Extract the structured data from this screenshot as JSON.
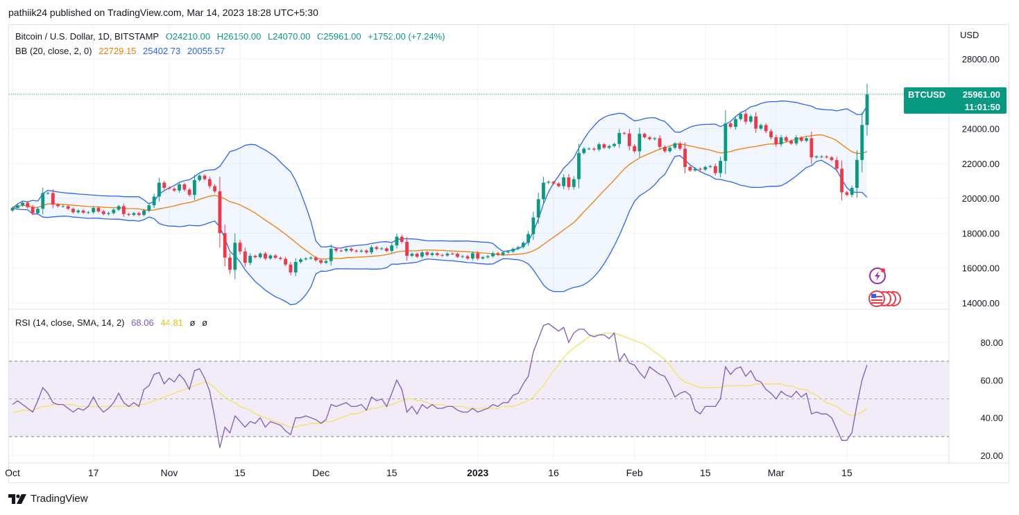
{
  "header": {
    "publisher": "pathiik24 published on TradingView.com, Mar 14, 2023 18:28 UTC+5:30"
  },
  "legend": {
    "symbol": "Bitcoin / U.S. Dollar, 1D, BITSTAMP",
    "open": "O24210.00",
    "high": "H26150.00",
    "low": "L24070.00",
    "close": "C25961.00",
    "change": "+1752.00 (+7.24%)",
    "bb_label": "BB (20, close, 2, 0)",
    "bb_basis": "22729.15",
    "bb_upper": "25402.73",
    "bb_lower": "20055.57",
    "rsi_label": "RSI (14, close, SMA, 14, 2)",
    "rsi_value": "68.06",
    "rsi_sma": "44.81",
    "rsi_extra1": "ø",
    "rsi_extra2": "ø"
  },
  "price_tag": {
    "symbol": "BTCUSD",
    "price": "25961.00",
    "countdown": "11:01:50"
  },
  "currency": "USD",
  "footer": {
    "brand": "TradingView"
  },
  "colors": {
    "up": "#089981",
    "down": "#f23645",
    "bb_band": "#2962ff",
    "bb_basis": "#f57c00",
    "rsi": "#7e57c2",
    "rsi_sma": "#f5e35b",
    "rsi_fill": "#ede7f6"
  },
  "chart_data": [
    {
      "type": "candlestick",
      "ylim": [
        13500,
        29500
      ],
      "y_ticks": [
        "28000.00",
        "26000.00",
        "24000.00",
        "22000.00",
        "20000.00",
        "18000.00",
        "16000.00",
        "14000.00"
      ],
      "y_tick_values": [
        28000,
        26000,
        24000,
        22000,
        20000,
        18000,
        16000,
        14000
      ],
      "x_ticks": [
        "Oct",
        "17",
        "Nov",
        "15",
        "Dec",
        "15",
        "2023",
        "16",
        "Feb",
        "15",
        "Mar",
        "15"
      ],
      "x_tick_index": [
        0,
        16,
        31,
        45,
        61,
        75,
        92,
        107,
        123,
        137,
        151,
        165
      ],
      "close": [
        19450,
        19600,
        19750,
        19500,
        19150,
        19400,
        20300,
        20300,
        19650,
        19550,
        19550,
        19400,
        19200,
        19300,
        19180,
        19200,
        19450,
        19250,
        19100,
        19150,
        19350,
        19550,
        19100,
        19050,
        19150,
        19050,
        19300,
        19600,
        20100,
        20900,
        20600,
        20550,
        20450,
        20800,
        20500,
        20200,
        21050,
        21300,
        21100,
        20700,
        20400,
        18000,
        16600,
        15900,
        17450,
        16950,
        16300,
        16700,
        16620,
        16830,
        16550,
        16720,
        16590,
        16530,
        16200,
        15750,
        16350,
        16500,
        16550,
        16600,
        16450,
        16300,
        16400,
        17100,
        17000,
        16990,
        17100,
        17000,
        16950,
        17000,
        16900,
        17200,
        17100,
        17130,
        16980,
        17300,
        17800,
        17500,
        16700,
        16820,
        16650,
        16900,
        16750,
        16850,
        16750,
        16720,
        16830,
        16820,
        16640,
        16680,
        16550,
        16850,
        16550,
        16620,
        16680,
        16850,
        16770,
        16900,
        16950,
        17100,
        17200,
        17450,
        17950,
        18900,
        19950,
        20900,
        20950,
        20850,
        20700,
        21200,
        20650,
        21100,
        22600,
        22850,
        22850,
        22800,
        23100,
        22900,
        23000,
        23120,
        23750,
        23720,
        23000,
        22700,
        23700,
        23500,
        23400,
        23450,
        22950,
        22700,
        22900,
        23150,
        22850,
        21800,
        21600,
        21700,
        21650,
        21800,
        21850,
        21450,
        22150,
        24300,
        24100,
        24550,
        24850,
        24400,
        24700,
        24000,
        24200,
        23850,
        23500,
        23100,
        23500,
        23300,
        23150,
        23500,
        23300,
        23450,
        22350,
        22400,
        22400,
        22350,
        22200,
        21700,
        20350,
        20200,
        20600,
        22200,
        24210,
        25961
      ]
    },
    {
      "type": "line",
      "ylim": [
        15,
        95
      ],
      "y_ticks": [
        "80.00",
        "60.00",
        "40.00",
        "20.00"
      ],
      "y_tick_values": [
        80,
        60,
        40,
        20
      ],
      "band": [
        30,
        70
      ],
      "middle": 50,
      "series": [
        {
          "name": "RSI",
          "values": [
            47,
            49,
            47,
            45,
            43,
            49,
            56,
            53,
            48,
            47,
            47,
            45,
            43,
            45,
            44,
            46,
            51,
            46,
            43,
            45,
            48,
            53,
            48,
            46,
            48,
            46,
            55,
            57,
            63,
            64,
            58,
            61,
            59,
            63,
            60,
            55,
            65,
            66,
            61,
            54,
            40,
            24,
            35,
            32,
            41,
            38,
            35,
            38,
            37,
            40,
            35,
            38,
            37,
            36,
            33,
            31,
            40,
            40,
            41,
            40,
            39,
            37,
            39,
            47,
            46,
            47,
            48,
            46,
            46,
            47,
            44,
            51,
            49,
            50,
            46,
            53,
            60,
            55,
            43,
            46,
            42,
            47,
            45,
            47,
            45,
            45,
            46,
            46,
            44,
            43,
            43,
            45,
            43,
            44,
            45,
            47,
            46,
            48,
            48,
            52,
            53,
            58,
            62,
            75,
            82,
            89,
            90,
            88,
            86,
            88,
            80,
            85,
            87,
            87,
            84,
            83,
            84,
            84,
            82,
            85,
            70,
            74,
            69,
            68,
            64,
            61,
            67,
            65,
            63,
            62,
            57,
            51,
            53,
            54,
            52,
            44,
            42,
            46,
            46,
            46,
            50,
            67,
            63,
            66,
            67,
            62,
            65,
            60,
            59,
            55,
            53,
            50,
            54,
            52,
            51,
            54,
            51,
            53,
            42,
            43,
            42,
            42,
            40,
            34,
            28,
            28,
            32,
            47,
            60,
            68.06
          ]
        },
        {
          "name": "SMA",
          "values": [
            43,
            43,
            44,
            44,
            44,
            45,
            46,
            46,
            47,
            47,
            47,
            47,
            47,
            46,
            46,
            46,
            46,
            46,
            46,
            46,
            46,
            46,
            46,
            46,
            46,
            47,
            47,
            48,
            49,
            50,
            51,
            52,
            53,
            54,
            55,
            56,
            57,
            58,
            59,
            58,
            56,
            53,
            51,
            49,
            48,
            46,
            45,
            44,
            42,
            41,
            40,
            39,
            38,
            37,
            36,
            35,
            35,
            36,
            36,
            37,
            37,
            37,
            38,
            38,
            39,
            40,
            41,
            42,
            42,
            43,
            44,
            45,
            45,
            46,
            46,
            47,
            48,
            49,
            50,
            50,
            49,
            49,
            48,
            47,
            47,
            47,
            46,
            46,
            46,
            46,
            45,
            45,
            45,
            45,
            45,
            45,
            45,
            46,
            46,
            46,
            47,
            48,
            49,
            51,
            54,
            57,
            61,
            65,
            68,
            72,
            75,
            77,
            79,
            81,
            83,
            84,
            84,
            85,
            85,
            85,
            84,
            83,
            82,
            81,
            80,
            79,
            77,
            75,
            73,
            71,
            68,
            64,
            61,
            59,
            58,
            57,
            56,
            56,
            56,
            56,
            56,
            57,
            57,
            57,
            57,
            57,
            57,
            58,
            58,
            58,
            58,
            58,
            58,
            57,
            57,
            56,
            55,
            55,
            53,
            52,
            50,
            48,
            47,
            46,
            44,
            42,
            41,
            42,
            43,
            44.81
          ]
        }
      ]
    }
  ]
}
